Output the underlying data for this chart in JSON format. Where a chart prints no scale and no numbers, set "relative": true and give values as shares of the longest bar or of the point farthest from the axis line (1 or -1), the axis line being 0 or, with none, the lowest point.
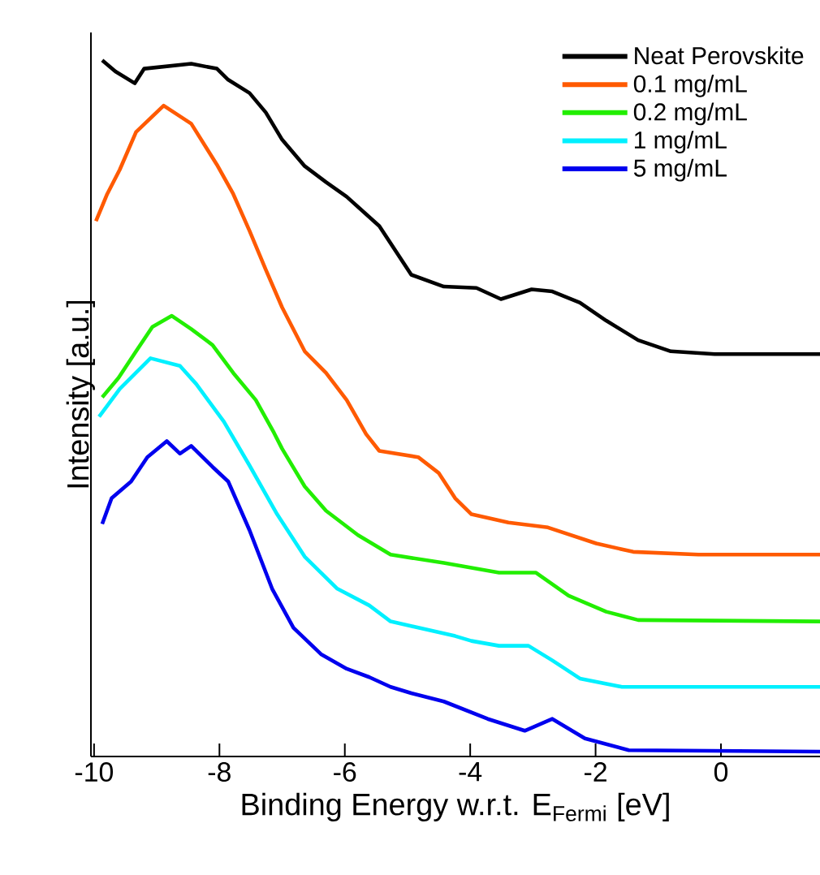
{
  "chart_data": {
    "type": "line",
    "xlabel": "Binding Energy w.r.t. E$_{Fermi}$ [eV]",
    "ylabel": "Intensity [a.u.]",
    "relative": true,
    "xlim": [
      -10.05,
      1.58
    ],
    "xticks": [
      -10,
      -8,
      -6,
      -4,
      -2,
      0
    ],
    "legend": "top right",
    "grid": false,
    "marker": "none",
    "line_style": "solid",
    "series": [
      {
        "name": "Neat Perovskite",
        "color": "#000000",
        "x": [
          -9.87,
          -9.66,
          -9.35,
          -9.2,
          -8.45,
          -8.04,
          -7.86,
          -7.52,
          -7.26,
          -7.0,
          -6.64,
          -6.3,
          -5.97,
          -5.45,
          -4.94,
          -4.42,
          -3.9,
          -3.51,
          -3.02,
          -2.69,
          -2.25,
          -1.83,
          -1.32,
          -0.8,
          -0.1,
          1.58
        ],
        "values": [
          1.0,
          0.984,
          0.967,
          0.988,
          0.995,
          0.988,
          0.972,
          0.953,
          0.925,
          0.886,
          0.848,
          0.825,
          0.804,
          0.762,
          0.692,
          0.675,
          0.673,
          0.657,
          0.671,
          0.668,
          0.652,
          0.626,
          0.598,
          0.582,
          0.578,
          0.578
        ]
      },
      {
        "name": "0.1 mg/mL",
        "color": "#ff5a00",
        "x": [
          -9.97,
          -9.79,
          -9.59,
          -9.33,
          -8.89,
          -8.45,
          -8.04,
          -7.78,
          -7.52,
          -7.26,
          -7.0,
          -6.64,
          -6.3,
          -5.97,
          -5.66,
          -5.45,
          -4.83,
          -4.5,
          -4.24,
          -3.98,
          -3.39,
          -2.76,
          -1.99,
          -1.4,
          -0.36,
          1.58
        ],
        "values": [
          0.769,
          0.808,
          0.843,
          0.897,
          0.935,
          0.909,
          0.85,
          0.808,
          0.755,
          0.699,
          0.645,
          0.582,
          0.551,
          0.512,
          0.463,
          0.439,
          0.43,
          0.407,
          0.371,
          0.348,
          0.336,
          0.329,
          0.306,
          0.294,
          0.29,
          0.29
        ]
      },
      {
        "name": "0.2 mg/mL",
        "color": "#22ee00",
        "x": [
          -9.87,
          -9.61,
          -9.33,
          -9.07,
          -8.76,
          -8.45,
          -8.11,
          -7.78,
          -7.42,
          -7.13,
          -7.0,
          -6.64,
          -6.3,
          -5.79,
          -5.27,
          -4.42,
          -3.54,
          -2.95,
          -2.43,
          -1.83,
          -1.32,
          1.58
        ],
        "values": [
          0.516,
          0.544,
          0.582,
          0.617,
          0.633,
          0.614,
          0.591,
          0.551,
          0.512,
          0.465,
          0.442,
          0.388,
          0.353,
          0.318,
          0.29,
          0.278,
          0.264,
          0.264,
          0.231,
          0.208,
          0.196,
          0.194
        ]
      },
      {
        "name": "1 mg/mL",
        "color": "#00f0ff",
        "x": [
          -9.92,
          -9.59,
          -9.1,
          -8.63,
          -8.37,
          -7.93,
          -7.52,
          -7.08,
          -6.64,
          -6.12,
          -5.61,
          -5.27,
          -4.24,
          -3.98,
          -3.54,
          -3.07,
          -2.69,
          -2.25,
          -1.58,
          1.58
        ],
        "values": [
          0.488,
          0.528,
          0.572,
          0.561,
          0.535,
          0.481,
          0.418,
          0.348,
          0.287,
          0.241,
          0.217,
          0.194,
          0.173,
          0.166,
          0.159,
          0.159,
          0.138,
          0.112,
          0.1,
          0.1
        ]
      },
      {
        "name": "5 mg/mL",
        "color": "#0000ee",
        "x": [
          -9.87,
          -9.72,
          -9.41,
          -9.15,
          -8.84,
          -8.63,
          -8.45,
          -8.11,
          -7.86,
          -7.52,
          -7.16,
          -6.82,
          -6.38,
          -5.97,
          -5.61,
          -5.27,
          -4.94,
          -4.42,
          -3.72,
          -3.13,
          -2.69,
          -2.17,
          -1.47,
          1.58
        ],
        "values": [
          0.334,
          0.371,
          0.395,
          0.43,
          0.453,
          0.435,
          0.446,
          0.416,
          0.395,
          0.325,
          0.241,
          0.185,
          0.147,
          0.126,
          0.114,
          0.1,
          0.091,
          0.079,
          0.054,
          0.037,
          0.054,
          0.026,
          0.009,
          0.007
        ]
      }
    ]
  }
}
